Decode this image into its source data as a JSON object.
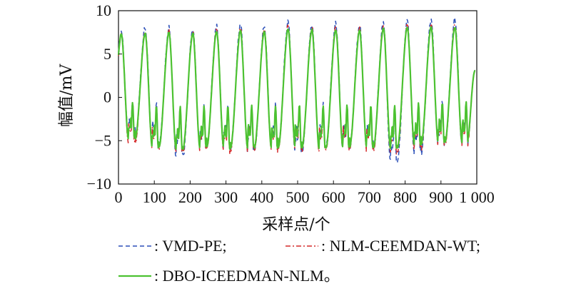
{
  "chart_data": {
    "type": "line",
    "xlabel": "采样点/个",
    "ylabel": "幅值/mV",
    "xlim": [
      0,
      1000
    ],
    "ylim": [
      -10,
      10
    ],
    "x_ticks": [
      "0",
      "100",
      "200",
      "300",
      "400",
      "500",
      "600",
      "700",
      "800",
      "900",
      "1 000"
    ],
    "y_ticks": [
      "10",
      "5",
      "0",
      "−5",
      "−10"
    ],
    "x_tick_values": [
      0,
      100,
      200,
      300,
      400,
      500,
      600,
      700,
      800,
      900,
      1000
    ],
    "y_tick_values": [
      10,
      5,
      0,
      -5,
      -10
    ],
    "grid": false,
    "legend_position": "bottom",
    "period": 66.5,
    "series": [
      {
        "name": "VMD-PE;",
        "legend_label": ": VMD-PE;",
        "color": "#2b4fb8",
        "dash": "dashed",
        "peaks": [
          7.6,
          8.0,
          8.0,
          7.9,
          8.2,
          8.5,
          8.2,
          8.7,
          8.4,
          8.5,
          8.3,
          8.7,
          8.9,
          9.0
        ],
        "troughs": [
          -4.6,
          -5.6,
          -6.8,
          -5.9,
          -6.0,
          -6.2,
          -5.9,
          -6.3,
          -5.8,
          -5.9,
          -5.9,
          -7.5,
          -6.5,
          -5.5
        ]
      },
      {
        "name": "NLM-CEEMDAN-WT;",
        "legend_label": ": NLM-CEEMDAN-WT;",
        "color": "#d42a2a",
        "dash": "dashdot",
        "peaks": [
          7.3,
          7.6,
          7.7,
          7.6,
          7.8,
          8.0,
          7.9,
          8.2,
          8.1,
          8.1,
          8.0,
          8.3,
          8.4,
          8.4
        ],
        "troughs": [
          -5.3,
          -6.0,
          -6.3,
          -6.1,
          -6.3,
          -6.1,
          -6.2,
          -6.1,
          -6.2,
          -6.0,
          -6.2,
          -6.5,
          -6.0,
          -5.6
        ]
      },
      {
        "name": "DBO-ICEEDMAN-NLM。",
        "legend_label": ": DBO-ICEEDMAN-NLM。",
        "color": "#4cc231",
        "dash": "solid",
        "peaks": [
          7.3,
          7.4,
          7.5,
          7.4,
          7.6,
          7.7,
          7.6,
          7.9,
          7.8,
          7.8,
          7.7,
          8.0,
          8.1,
          8.1
        ],
        "troughs": [
          -4.8,
          -5.8,
          -6.0,
          -5.8,
          -5.9,
          -5.8,
          -5.9,
          -5.8,
          -5.9,
          -5.8,
          -5.8,
          -5.9,
          -5.5,
          -5.2
        ]
      }
    ]
  }
}
